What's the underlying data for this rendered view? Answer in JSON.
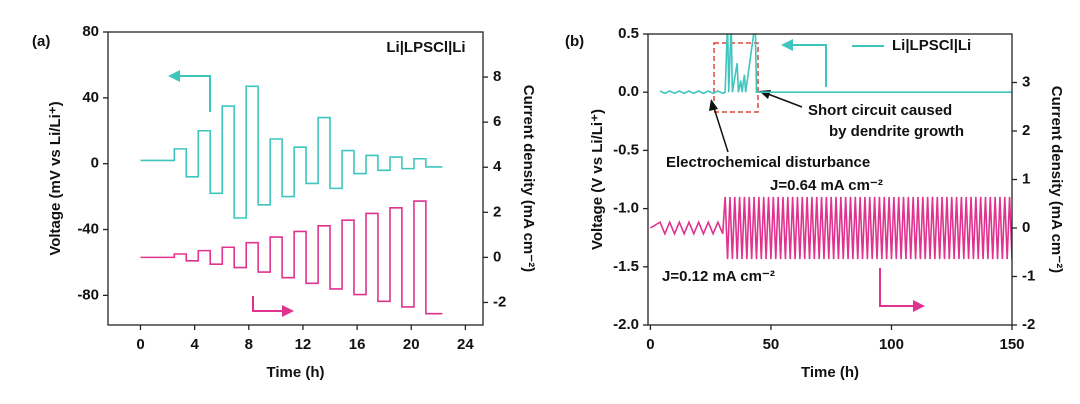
{
  "chart_data": [
    {
      "type": "line",
      "panel_label": "(a)",
      "xlabel": "Time (h)",
      "ylabel": "Voltage (mV vs Li/Li⁺)",
      "y2label": "Current density (mA cm⁻²)",
      "annotations": [
        "Li|LPSCl|Li"
      ],
      "xlim": [
        -2.4,
        25.3
      ],
      "xticks": [
        0,
        4,
        8,
        12,
        16,
        20,
        24
      ],
      "ylim": [
        -98,
        80
      ],
      "yticks": [
        -80,
        -40,
        0,
        40,
        80
      ],
      "y2lim": [
        -3,
        10
      ],
      "y2ticks": [
        -2,
        0,
        2,
        4,
        6,
        8
      ],
      "x": [
        0,
        2.5,
        2.5,
        3.38,
        3.38,
        4.27,
        4.27,
        5.15,
        5.15,
        6.04,
        6.04,
        6.92,
        6.92,
        7.81,
        7.81,
        8.69,
        8.69,
        9.58,
        9.58,
        10.46,
        10.46,
        11.35,
        11.35,
        12.23,
        12.23,
        13.12,
        13.12,
        14.0,
        14.0,
        14.89,
        14.89,
        15.77,
        15.77,
        16.66,
        16.66,
        17.54,
        17.54,
        18.43,
        18.43,
        19.31,
        19.31,
        20.2,
        20.2,
        21.08,
        21.08,
        22.3
      ],
      "series": [
        {
          "color": "#3ec6bd",
          "values": [
            2,
            2,
            9,
            9,
            -8,
            -8,
            20,
            20,
            -18,
            -18,
            35,
            35,
            -33,
            -33,
            47,
            47,
            -25,
            -25,
            15,
            15,
            -20,
            -20,
            10,
            10,
            -12,
            -12,
            28,
            28,
            -15,
            -15,
            8,
            8,
            -6,
            -6,
            5,
            5,
            -4,
            -4,
            4,
            4,
            -3,
            -3,
            3,
            3,
            -2,
            -2
          ]
        },
        {
          "color": "#e0338f",
          "axis": "y2",
          "values": [
            0,
            0,
            0.15,
            0.15,
            -0.15,
            -0.15,
            0.3,
            0.3,
            -0.3,
            -0.3,
            0.45,
            0.45,
            -0.45,
            -0.45,
            0.65,
            0.65,
            -0.65,
            -0.65,
            0.9,
            0.9,
            -0.9,
            -0.9,
            1.15,
            1.15,
            -1.15,
            -1.15,
            1.4,
            1.4,
            -1.4,
            -1.4,
            1.65,
            1.65,
            -1.65,
            -1.65,
            1.95,
            1.95,
            -1.95,
            -1.95,
            2.2,
            2.2,
            -2.2,
            -2.2,
            2.5,
            2.5,
            -2.5,
            -2.5
          ]
        }
      ]
    },
    {
      "type": "line",
      "panel_label": "(b)",
      "xlabel": "Time (h)",
      "ylabel": "Voltage (V vs Li/Li⁺)",
      "y2label": "Current density (mA cm⁻²)",
      "annotations": [
        "Short circuit caused",
        "by dendrite growth",
        "Electrochemical disturbance",
        "J=0.64 mA cm⁻²",
        "J=0.12 mA cm⁻²"
      ],
      "xlim": [
        -1,
        150
      ],
      "xticks": [
        0,
        50,
        100,
        150
      ],
      "ylim": [
        -2,
        0.5
      ],
      "yticks": [
        {
          "value": -2,
          "label": "-2.0"
        },
        -1.5,
        {
          "value": -1,
          "label": "-1.0"
        },
        -0.5,
        {
          "value": 0,
          "label": "0.0"
        },
        0.5
      ],
      "y2lim": [
        -2,
        4
      ],
      "y2ticks": [
        -2,
        -1,
        0,
        1,
        2,
        3
      ],
      "series": [
        {
          "name": "Li|LPSCl|Li",
          "color": "#3ec6bd",
          "x": [
            4,
            6,
            8,
            10,
            12,
            14,
            16,
            18,
            20,
            22,
            24,
            26,
            28,
            30,
            31,
            32,
            32.5,
            33.5,
            34,
            36,
            36.5,
            37.5,
            38,
            39,
            39.5,
            43.5,
            44,
            150
          ],
          "values": [
            0.01,
            -0.01,
            0.01,
            -0.01,
            0.01,
            -0.01,
            0.01,
            -0.01,
            0.01,
            -0.01,
            0.01,
            -0.01,
            0.01,
            -0.01,
            0,
            0.6,
            0,
            0.6,
            0,
            0.25,
            0,
            0.1,
            0,
            0.15,
            0,
            0.6,
            0,
            0
          ]
        },
        {
          "color": "#e0338f",
          "axis": "y2",
          "x": [
            0,
            4,
            6,
            8,
            10,
            12,
            14,
            16,
            18,
            20,
            22,
            24,
            26,
            28,
            30,
            31,
            32,
            33,
            34,
            35,
            36,
            37,
            38,
            39,
            40,
            41,
            42,
            43,
            44,
            45,
            46,
            47,
            48,
            49,
            50,
            51,
            52,
            53,
            54,
            55,
            56,
            57,
            58,
            59,
            60,
            61,
            62,
            63,
            64,
            65,
            66,
            67,
            68,
            69,
            70,
            71,
            72,
            73,
            74,
            75,
            76,
            77,
            78,
            79,
            80,
            81,
            82,
            83,
            84,
            85,
            86,
            87,
            88,
            89,
            90,
            91,
            92,
            93,
            94,
            95,
            96,
            97,
            98,
            99,
            100,
            101,
            102,
            103,
            104,
            105,
            106,
            107,
            108,
            109,
            110,
            111,
            112,
            113,
            114,
            115,
            116,
            117,
            118,
            119,
            120,
            121,
            122,
            123,
            124,
            125,
            126,
            127,
            128,
            129,
            130,
            131,
            132,
            133,
            134,
            135,
            136,
            137,
            138,
            139,
            140,
            141,
            142,
            143,
            144,
            145,
            146,
            147,
            148,
            149,
            150
          ],
          "values": [
            0,
            0.12,
            -0.12,
            0.12,
            -0.12,
            0.12,
            -0.12,
            0.12,
            -0.12,
            0.12,
            -0.12,
            0.12,
            -0.12,
            0.12,
            -0.12,
            0.64,
            -0.64,
            0.64,
            -0.64,
            0.64,
            -0.64,
            0.64,
            -0.64,
            0.64,
            -0.64,
            0.64,
            -0.64,
            0.64,
            -0.64,
            0.64,
            -0.64,
            0.64,
            -0.64,
            0.64,
            -0.64,
            0.64,
            -0.64,
            0.64,
            -0.64,
            0.64,
            -0.64,
            0.64,
            -0.64,
            0.64,
            -0.64,
            0.64,
            -0.64,
            0.64,
            -0.64,
            0.64,
            -0.64,
            0.64,
            -0.64,
            0.64,
            -0.64,
            0.64,
            -0.64,
            0.64,
            -0.64,
            0.64,
            -0.64,
            0.64,
            -0.64,
            0.64,
            -0.64,
            0.64,
            -0.64,
            0.64,
            -0.64,
            0.64,
            -0.64,
            0.64,
            -0.64,
            0.64,
            -0.64,
            0.64,
            -0.64,
            0.64,
            -0.64,
            0.64,
            -0.64,
            0.64,
            -0.64,
            0.64,
            -0.64,
            0.64,
            -0.64,
            0.64,
            -0.64,
            0.64,
            -0.64,
            0.64,
            -0.64,
            0.64,
            -0.64,
            0.64,
            -0.64,
            0.64,
            -0.64,
            0.64,
            -0.64,
            0.64,
            -0.64,
            0.64,
            -0.64,
            0.64,
            -0.64,
            0.64,
            -0.64,
            0.64,
            -0.64,
            0.64,
            -0.64,
            0.64,
            -0.64,
            0.64,
            -0.64,
            0.64,
            -0.64,
            0.64,
            -0.64,
            0.64,
            -0.64,
            0.64,
            -0.64,
            0.64,
            -0.64,
            0.64,
            -0.64,
            0.64,
            -0.64,
            0.64,
            -0.64,
            0.64,
            -0.64
          ]
        }
      ]
    }
  ]
}
